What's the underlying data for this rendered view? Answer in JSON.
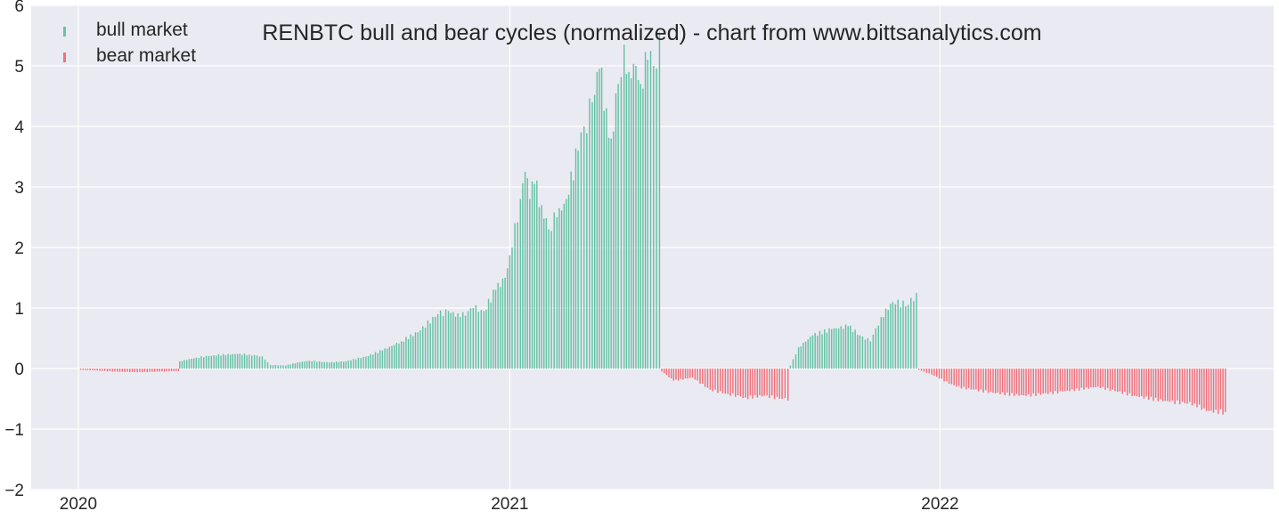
{
  "chart_data": {
    "type": "bar",
    "title": "RENBTC bull and bear cycles (normalized)  - chart from www.bittsanalytics.com",
    "xlabel": "",
    "ylabel": "",
    "x_range": [
      "2019-11-22",
      "2022-10-11"
    ],
    "ylim": [
      -2,
      6
    ],
    "yticks": [
      -2,
      -1,
      0,
      1,
      2,
      3,
      4,
      5,
      6
    ],
    "yticklabels": [
      "−2",
      "−1",
      "0",
      "1",
      "2",
      "3",
      "4",
      "5",
      "6"
    ],
    "xticks": [
      "2020-01-01",
      "2021-01-01",
      "2022-01-01"
    ],
    "xticklabels": [
      "2020",
      "2021",
      "2022"
    ],
    "grid": true,
    "legend_placement": "top-left",
    "colors": {
      "bull": "#66c2a5",
      "bear": "#f1707a",
      "background": "#eaeaf2",
      "grid": "#ffffff"
    },
    "series": [
      {
        "name": "bull market",
        "color": "#66c2a5"
      },
      {
        "name": "bear market",
        "color": "#f1707a"
      }
    ],
    "frequency": "every 2 days",
    "points": [
      [
        "2020-01-03",
        -0.02
      ],
      [
        "2020-01-15",
        -0.03
      ],
      [
        "2020-02-01",
        -0.05
      ],
      [
        "2020-02-20",
        -0.06
      ],
      [
        "2020-03-10",
        -0.05
      ],
      [
        "2020-03-26",
        -0.04
      ],
      [
        "2020-03-27",
        0.12
      ],
      [
        "2020-04-10",
        0.18
      ],
      [
        "2020-04-25",
        0.22
      ],
      [
        "2020-05-15",
        0.24
      ],
      [
        "2020-05-25",
        0.23
      ],
      [
        "2020-06-05",
        0.2
      ],
      [
        "2020-06-12",
        0.06
      ],
      [
        "2020-06-25",
        0.05
      ],
      [
        "2020-07-05",
        0.1
      ],
      [
        "2020-07-15",
        0.13
      ],
      [
        "2020-08-01",
        0.1
      ],
      [
        "2020-08-15",
        0.12
      ],
      [
        "2020-09-01",
        0.2
      ],
      [
        "2020-09-15",
        0.3
      ],
      [
        "2020-10-01",
        0.45
      ],
      [
        "2020-10-15",
        0.6
      ],
      [
        "2020-11-01",
        0.9
      ],
      [
        "2020-11-10",
        0.95
      ],
      [
        "2020-11-20",
        0.85
      ],
      [
        "2020-12-01",
        1.0
      ],
      [
        "2020-12-10",
        0.95
      ],
      [
        "2020-12-20",
        1.3
      ],
      [
        "2020-12-28",
        1.5
      ],
      [
        "2021-01-03",
        2.0
      ],
      [
        "2021-01-10",
        2.8
      ],
      [
        "2021-01-14",
        3.25
      ],
      [
        "2021-01-18",
        2.8
      ],
      [
        "2021-01-22",
        3.05
      ],
      [
        "2021-01-28",
        2.7
      ],
      [
        "2021-02-03",
        2.3
      ],
      [
        "2021-02-10",
        2.5
      ],
      [
        "2021-02-18",
        2.8
      ],
      [
        "2021-02-28",
        3.6
      ],
      [
        "2021-03-05",
        4.0
      ],
      [
        "2021-03-12",
        4.4
      ],
      [
        "2021-03-18",
        4.95
      ],
      [
        "2021-03-24",
        4.3
      ],
      [
        "2021-03-28",
        3.8
      ],
      [
        "2021-04-03",
        4.7
      ],
      [
        "2021-04-08",
        5.35
      ],
      [
        "2021-04-12",
        4.9
      ],
      [
        "2021-04-18",
        5.0
      ],
      [
        "2021-04-22",
        4.7
      ],
      [
        "2021-04-28",
        5.1
      ],
      [
        "2021-05-03",
        5.0
      ],
      [
        "2021-05-08",
        5.55
      ],
      [
        "2021-05-10",
        -0.05
      ],
      [
        "2021-05-20",
        -0.2
      ],
      [
        "2021-06-05",
        -0.15
      ],
      [
        "2021-06-20",
        -0.35
      ],
      [
        "2021-07-05",
        -0.42
      ],
      [
        "2021-07-20",
        -0.48
      ],
      [
        "2021-08-05",
        -0.45
      ],
      [
        "2021-08-20",
        -0.5
      ],
      [
        "2021-08-25",
        -0.53
      ],
      [
        "2021-08-27",
        0.05
      ],
      [
        "2021-09-03",
        0.35
      ],
      [
        "2021-09-15",
        0.55
      ],
      [
        "2021-10-01",
        0.65
      ],
      [
        "2021-10-15",
        0.7
      ],
      [
        "2021-10-25",
        0.55
      ],
      [
        "2021-11-03",
        0.45
      ],
      [
        "2021-11-12",
        0.85
      ],
      [
        "2021-11-22",
        1.1
      ],
      [
        "2021-12-05",
        1.05
      ],
      [
        "2021-12-12",
        1.25
      ],
      [
        "2021-12-14",
        -0.02
      ],
      [
        "2021-12-25",
        -0.1
      ],
      [
        "2022-01-15",
        -0.3
      ],
      [
        "2022-02-15",
        -0.4
      ],
      [
        "2022-03-15",
        -0.45
      ],
      [
        "2022-04-15",
        -0.38
      ],
      [
        "2022-05-15",
        -0.3
      ],
      [
        "2022-06-15",
        -0.45
      ],
      [
        "2022-07-15",
        -0.55
      ],
      [
        "2022-08-05",
        -0.58
      ],
      [
        "2022-08-15",
        -0.7
      ],
      [
        "2022-08-31",
        -0.72
      ]
    ]
  }
}
